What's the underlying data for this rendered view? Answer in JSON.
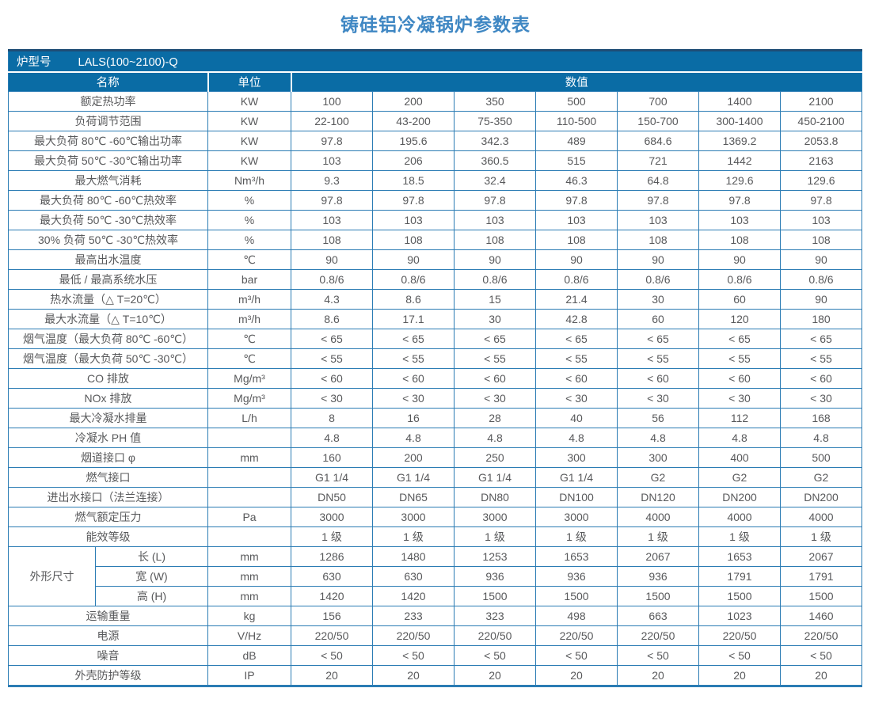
{
  "title": "铸硅铝冷凝锅炉参数表",
  "model": {
    "label": "炉型号",
    "value": "LALS(100~2100)-Q"
  },
  "columns": {
    "name": "名称",
    "unit": "单位",
    "value": "数值"
  },
  "colors": {
    "header_bg": "#0a6ca5",
    "grid_line": "#2b7cb4",
    "title_text": "#3f87c3",
    "body_text": "#58595b",
    "top_strip": "#1e4d75"
  },
  "table": {
    "rows_before": [
      {
        "name": "额定热功率",
        "unit": "KW",
        "values": [
          "100",
          "200",
          "350",
          "500",
          "700",
          "1400",
          "2100"
        ]
      },
      {
        "name": "负荷调节范围",
        "unit": "KW",
        "values": [
          "22-100",
          "43-200",
          "75-350",
          "110-500",
          "150-700",
          "300-1400",
          "450-2100"
        ]
      },
      {
        "name": "最大负荷 80℃ -60℃输出功率",
        "unit": "KW",
        "values": [
          "97.8",
          "195.6",
          "342.3",
          "489",
          "684.6",
          "1369.2",
          "2053.8"
        ]
      },
      {
        "name": "最大负荷 50℃ -30℃输出功率",
        "unit": "KW",
        "values": [
          "103",
          "206",
          "360.5",
          "515",
          "721",
          "1442",
          "2163"
        ]
      },
      {
        "name": "最大燃气消耗",
        "unit": "Nm³/h",
        "values": [
          "9.3",
          "18.5",
          "32.4",
          "46.3",
          "64.8",
          "129.6",
          "129.6"
        ]
      },
      {
        "name": "最大负荷 80℃ -60℃热效率",
        "unit": "%",
        "values": [
          "97.8",
          "97.8",
          "97.8",
          "97.8",
          "97.8",
          "97.8",
          "97.8"
        ]
      },
      {
        "name": "最大负荷 50℃ -30℃热效率",
        "unit": "%",
        "values": [
          "103",
          "103",
          "103",
          "103",
          "103",
          "103",
          "103"
        ]
      },
      {
        "name": "30% 负荷 50℃ -30℃热效率",
        "unit": "%",
        "values": [
          "108",
          "108",
          "108",
          "108",
          "108",
          "108",
          "108"
        ]
      },
      {
        "name": "最高出水温度",
        "unit": "℃",
        "values": [
          "90",
          "90",
          "90",
          "90",
          "90",
          "90",
          "90"
        ]
      },
      {
        "name": "最低 / 最高系统水压",
        "unit": "bar",
        "values": [
          "0.8/6",
          "0.8/6",
          "0.8/6",
          "0.8/6",
          "0.8/6",
          "0.8/6",
          "0.8/6"
        ]
      },
      {
        "name": "热水流量（△ T=20℃）",
        "unit": "m³/h",
        "values": [
          "4.3",
          "8.6",
          "15",
          "21.4",
          "30",
          "60",
          "90"
        ]
      },
      {
        "name": "最大水流量（△ T=10℃）",
        "unit": "m³/h",
        "values": [
          "8.6",
          "17.1",
          "30",
          "42.8",
          "60",
          "120",
          "180"
        ]
      },
      {
        "name": "烟气温度（最大负荷 80℃ -60℃）",
        "unit": "℃",
        "values": [
          "< 65",
          "< 65",
          "< 65",
          "< 65",
          "< 65",
          "< 65",
          "< 65"
        ]
      },
      {
        "name": "烟气温度（最大负荷 50℃ -30℃）",
        "unit": "℃",
        "values": [
          "< 55",
          "< 55",
          "< 55",
          "< 55",
          "< 55",
          "< 55",
          "< 55"
        ]
      },
      {
        "name": "CO 排放",
        "unit": "Mg/m³",
        "values": [
          "< 60",
          "< 60",
          "< 60",
          "< 60",
          "< 60",
          "< 60",
          "< 60"
        ]
      },
      {
        "name": "NOx 排放",
        "unit": "Mg/m³",
        "values": [
          "< 30",
          "< 30",
          "< 30",
          "< 30",
          "< 30",
          "< 30",
          "< 30"
        ]
      },
      {
        "name": "最大冷凝水排量",
        "unit": "L/h",
        "values": [
          "8",
          "16",
          "28",
          "40",
          "56",
          "112",
          "168"
        ]
      },
      {
        "name": "冷凝水 PH 值",
        "unit": "",
        "values": [
          "4.8",
          "4.8",
          "4.8",
          "4.8",
          "4.8",
          "4.8",
          "4.8"
        ]
      },
      {
        "name": "烟道接口 φ",
        "unit": "mm",
        "values": [
          "160",
          "200",
          "250",
          "300",
          "300",
          "400",
          "500"
        ]
      },
      {
        "name": "燃气接口",
        "unit": "",
        "values": [
          "G1 1/4",
          "G1 1/4",
          "G1 1/4",
          "G1 1/4",
          "G2",
          "G2",
          "G2"
        ]
      },
      {
        "name": "进出水接口（法兰连接）",
        "unit": "",
        "values": [
          "DN50",
          "DN65",
          "DN80",
          "DN100",
          "DN120",
          "DN200",
          "DN200"
        ]
      },
      {
        "name": "燃气额定压力",
        "unit": "Pa",
        "values": [
          "3000",
          "3000",
          "3000",
          "3000",
          "4000",
          "4000",
          "4000"
        ]
      },
      {
        "name": "能效等级",
        "unit": "",
        "values": [
          "1 级",
          "1 级",
          "1 级",
          "1 级",
          "1 级",
          "1 级",
          "1 级"
        ]
      }
    ],
    "dimensions_group": {
      "label": "外形尺寸",
      "rows": [
        {
          "name": "长 (L)",
          "unit": "mm",
          "values": [
            "1286",
            "1480",
            "1253",
            "1653",
            "2067",
            "1653",
            "2067"
          ]
        },
        {
          "name": "宽 (W)",
          "unit": "mm",
          "values": [
            "630",
            "630",
            "936",
            "936",
            "936",
            "1791",
            "1791"
          ]
        },
        {
          "name": "高 (H)",
          "unit": "mm",
          "values": [
            "1420",
            "1420",
            "1500",
            "1500",
            "1500",
            "1500",
            "1500"
          ]
        }
      ]
    },
    "rows_after": [
      {
        "name": "运输重量",
        "unit": "kg",
        "values": [
          "156",
          "233",
          "323",
          "498",
          "663",
          "1023",
          "1460"
        ]
      },
      {
        "name": "电源",
        "unit": "V/Hz",
        "values": [
          "220/50",
          "220/50",
          "220/50",
          "220/50",
          "220/50",
          "220/50",
          "220/50"
        ]
      },
      {
        "name": "噪音",
        "unit": "dB",
        "values": [
          "< 50",
          "< 50",
          "< 50",
          "< 50",
          "< 50",
          "< 50",
          "< 50"
        ]
      },
      {
        "name": "外壳防护等级",
        "unit": "IP",
        "values": [
          "20",
          "20",
          "20",
          "20",
          "20",
          "20",
          "20"
        ]
      }
    ]
  }
}
